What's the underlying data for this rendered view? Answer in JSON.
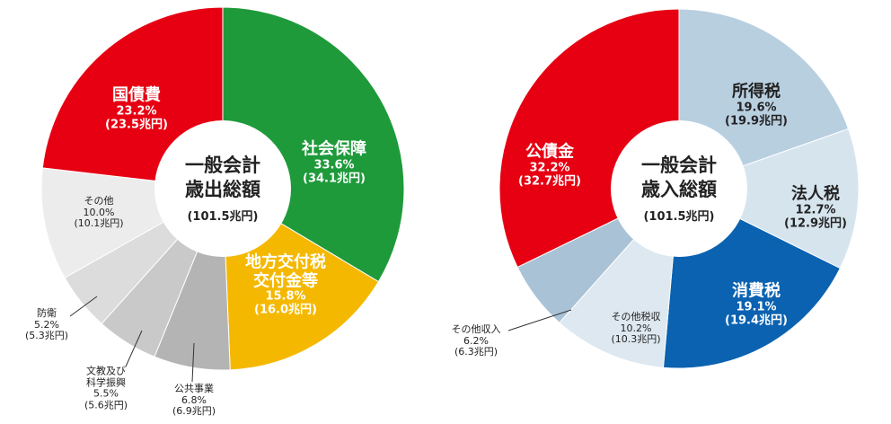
{
  "chart_data": [
    {
      "type": "pie",
      "center_label": "一般会計\n歳出総額",
      "center_amount": "(101.5兆円)",
      "categories": [
        "社会保障",
        "地方交付税\n交付金等",
        "公共事業",
        "文教及び\n科学振興",
        "防衛",
        "その他",
        "国債費"
      ],
      "values": [
        33.6,
        15.8,
        6.8,
        5.5,
        5.2,
        10.0,
        23.2
      ],
      "value_labels": [
        "33.6%",
        "15.8%",
        "6.8%",
        "5.5%",
        "5.2%",
        "10.0%",
        "23.2%"
      ],
      "amount_labels": [
        "(34.1兆円)",
        "(16.0兆円)",
        "(6.9兆円)",
        "(5.6兆円)",
        "(5.3兆円)",
        "(10.1兆円)",
        "(23.5兆円)"
      ],
      "colors": [
        "#1e9a3a",
        "#f5b800",
        "#b4b4b4",
        "#c9c9c9",
        "#dcdcdc",
        "#ececec",
        "#e60012"
      ]
    },
    {
      "type": "pie",
      "center_label": "一般会計\n歳入総額",
      "center_amount": "(101.5兆円)",
      "categories": [
        "所得税",
        "法人税",
        "消費税",
        "その他税収",
        "その他収入",
        "公債金"
      ],
      "values": [
        19.6,
        12.7,
        19.1,
        10.2,
        6.2,
        32.2
      ],
      "value_labels": [
        "19.6%",
        "12.7%",
        "19.1%",
        "10.2%",
        "6.2%",
        "32.2%"
      ],
      "amount_labels": [
        "(19.9兆円)",
        "(12.9兆円)",
        "(19.4兆円)",
        "(10.3兆円)",
        "(6.3兆円)",
        "(32.7兆円)"
      ],
      "colors": [
        "#b8cfe0",
        "#d6e4ee",
        "#0b62b0",
        "#dde8f0",
        "#a9c2d6",
        "#e60012"
      ]
    }
  ]
}
